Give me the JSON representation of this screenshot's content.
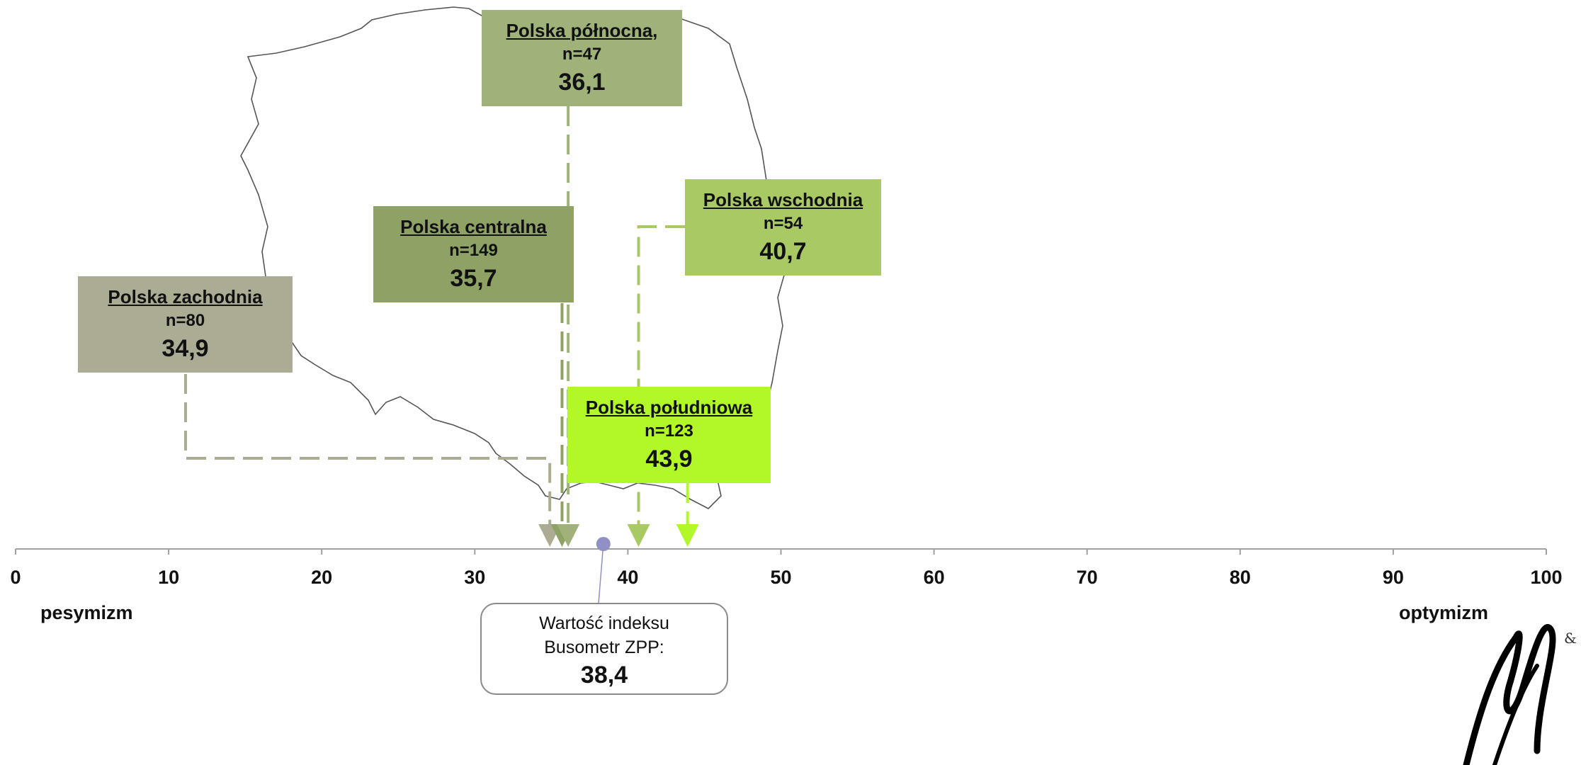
{
  "colors": {
    "zachodnia": "#acac94",
    "centralna": "#8fa266",
    "polnocna": "#9fb27a",
    "wschodnia": "#a9c965",
    "poludniowa": "#b2f728",
    "axis": "#a0a0a0",
    "index_marker": "#9090c4"
  },
  "chart_data": {
    "type": "scatter",
    "xlim": [
      0,
      100
    ],
    "x_ticks": [
      "0",
      "10",
      "20",
      "30",
      "40",
      "50",
      "60",
      "70",
      "80",
      "90",
      "100"
    ],
    "scale_labels": {
      "left": "pesymizm",
      "right": "optymizm"
    },
    "series": [
      {
        "region": "Polska zachodnia",
        "n": "n=80",
        "value_label": "34,9",
        "x": 34.9
      },
      {
        "region": "Polska centralna",
        "n": "n=149",
        "value_label": "35,7",
        "x": 35.7
      },
      {
        "region": "Polska północna,",
        "n": "n=47",
        "value_label": "36,1",
        "x": 36.1
      },
      {
        "region": "Polska wschodnia",
        "n": "n=54",
        "value_label": "40,7",
        "x": 40.7
      },
      {
        "region": "Polska południowa",
        "n": "n=123",
        "value_label": "43,9",
        "x": 43.9
      }
    ],
    "index": {
      "label_line1": "Wartość indeksu",
      "label_line2": "Busometr ZPP:",
      "value_label": "38,4",
      "x": 38.4
    }
  }
}
